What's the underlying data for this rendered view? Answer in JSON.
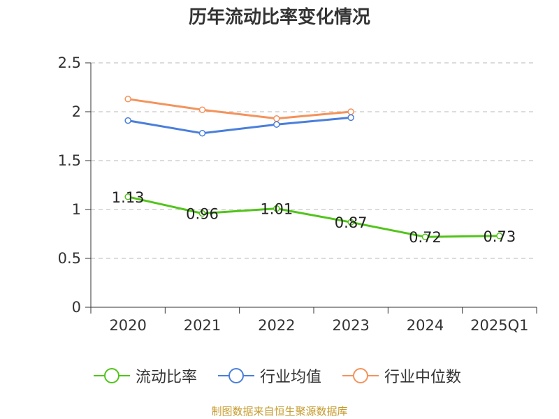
{
  "chart_data": {
    "type": "line",
    "title": "历年流动比率变化情况",
    "categories": [
      "2020",
      "2021",
      "2022",
      "2023",
      "2024",
      "2025Q1"
    ],
    "ylim": [
      0,
      2.5
    ],
    "yticks": [
      "0",
      "0.5",
      "1",
      "1.5",
      "2",
      "2.5"
    ],
    "grid": true,
    "legend_position": "bottom",
    "series": [
      {
        "name": "流动比率",
        "color": "#52c41a",
        "values": [
          1.13,
          0.96,
          1.01,
          0.87,
          0.72,
          0.73
        ],
        "labels": [
          "1.13",
          "0.96",
          "1.01",
          "0.87",
          "0.72",
          "0.73"
        ]
      },
      {
        "name": "行业均值",
        "color": "#4a7fdb",
        "values": [
          1.91,
          1.78,
          1.87,
          1.94,
          null,
          null
        ]
      },
      {
        "name": "行业中位数",
        "color": "#f4935c",
        "values": [
          2.13,
          2.02,
          1.93,
          2.0,
          null,
          null
        ]
      }
    ]
  },
  "source": "制图数据来自恒生聚源数据库"
}
